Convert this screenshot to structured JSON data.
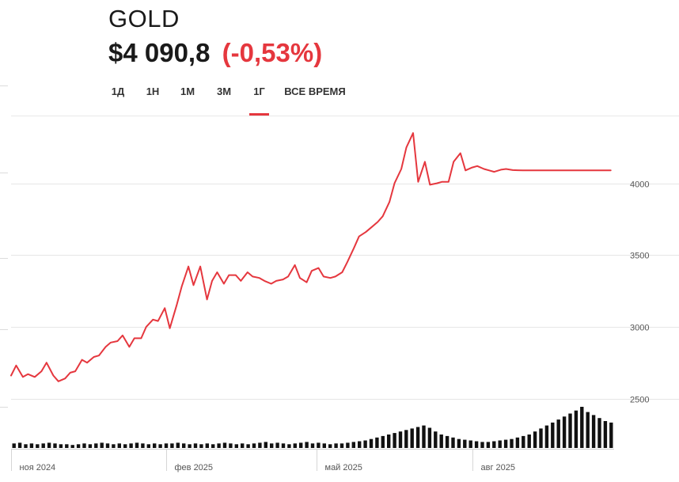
{
  "header": {
    "symbol": "GOLD",
    "price": "$4 090,8",
    "change": "(-0,53%)"
  },
  "tabs": [
    {
      "label": "1Д",
      "active": false
    },
    {
      "label": "1Н",
      "active": false
    },
    {
      "label": "1М",
      "active": false
    },
    {
      "label": "3М",
      "active": false
    },
    {
      "label": "1Г",
      "active": true
    },
    {
      "label": "ВСЕ ВРЕМЯ",
      "active": false
    }
  ],
  "colors": {
    "line": "#e5373e",
    "volume": "#111111",
    "grid": "#e6e6e6",
    "axis_text": "#555555"
  },
  "chart_data": {
    "type": "line",
    "title": "GOLD",
    "x_range_days": [
      0,
      357
    ],
    "ylim": [
      2150,
      4450
    ],
    "y_ticks": [
      2500,
      3000,
      3500,
      4000
    ],
    "y_tick_labels": [
      "2500",
      "3000",
      "3500",
      "4000"
    ],
    "x_ticks": [
      {
        "label": "ноя 2024",
        "day": 0
      },
      {
        "label": "фев 2025",
        "day": 92
      },
      {
        "label": "май 2025",
        "day": 181
      },
      {
        "label": "авг 2025",
        "day": 273
      }
    ],
    "series": [
      {
        "name": "GOLD",
        "x": [
          0,
          3,
          7,
          10,
          14,
          18,
          21,
          25,
          28,
          32,
          35,
          38,
          42,
          45,
          49,
          52,
          56,
          59,
          63,
          66,
          70,
          73,
          77,
          80,
          84,
          87,
          91,
          94,
          98,
          101,
          105,
          108,
          112,
          116,
          119,
          122,
          126,
          129,
          133,
          136,
          140,
          143,
          147,
          150,
          154,
          157,
          161,
          164,
          168,
          171,
          175,
          178,
          182,
          185,
          189,
          192,
          196,
          199,
          203,
          206,
          210,
          213,
          217,
          220,
          224,
          227,
          231,
          234,
          238,
          241,
          245,
          248,
          252,
          255,
          259,
          262,
          266,
          269,
          273,
          276,
          280,
          283,
          286,
          290,
          293,
          297,
          300,
          303,
          307,
          310,
          314,
          318,
          321,
          324,
          328,
          331,
          335,
          338,
          342,
          345,
          349,
          352,
          355
        ],
        "y": [
          2660,
          2730,
          2650,
          2670,
          2650,
          2690,
          2750,
          2660,
          2620,
          2640,
          2680,
          2690,
          2770,
          2750,
          2790,
          2800,
          2860,
          2890,
          2900,
          2940,
          2860,
          2920,
          2920,
          3000,
          3050,
          3040,
          3130,
          2990,
          3150,
          3280,
          3420,
          3290,
          3420,
          3190,
          3320,
          3380,
          3300,
          3360,
          3360,
          3320,
          3380,
          3350,
          3340,
          3320,
          3300,
          3320,
          3330,
          3350,
          3430,
          3340,
          3310,
          3390,
          3410,
          3350,
          3340,
          3350,
          3380,
          3450,
          3550,
          3630,
          3660,
          3690,
          3730,
          3770,
          3870,
          4000,
          4100,
          4250,
          4350,
          4010,
          4150,
          3990,
          4000,
          4010,
          4010,
          4150,
          4210,
          4090,
          4110,
          4120,
          4100,
          4090,
          4080,
          4095,
          4100,
          4092,
          4091,
          4090,
          4090,
          4090,
          4090,
          4090,
          4090,
          4090,
          4090,
          4090,
          4090,
          4090,
          4090,
          4090,
          4090,
          4090,
          4090
        ]
      }
    ],
    "volume": {
      "name": "Volume",
      "values": [
        6,
        7,
        5,
        6,
        5,
        6,
        7,
        6,
        5,
        5,
        4,
        5,
        6,
        5,
        6,
        7,
        6,
        5,
        6,
        5,
        6,
        7,
        6,
        5,
        6,
        5,
        6,
        6,
        7,
        6,
        5,
        6,
        5,
        6,
        5,
        6,
        7,
        6,
        5,
        6,
        5,
        6,
        7,
        8,
        6,
        7,
        6,
        5,
        6,
        7,
        8,
        6,
        7,
        6,
        5,
        6,
        6,
        7,
        8,
        9,
        10,
        12,
        14,
        16,
        18,
        20,
        22,
        24,
        26,
        28,
        30,
        27,
        22,
        18,
        16,
        14,
        12,
        11,
        10,
        9,
        8,
        8,
        9,
        10,
        11,
        12,
        14,
        16,
        18,
        22,
        26,
        30,
        34,
        38,
        42,
        46,
        50,
        55,
        48,
        44,
        40,
        36,
        34
      ]
    }
  }
}
